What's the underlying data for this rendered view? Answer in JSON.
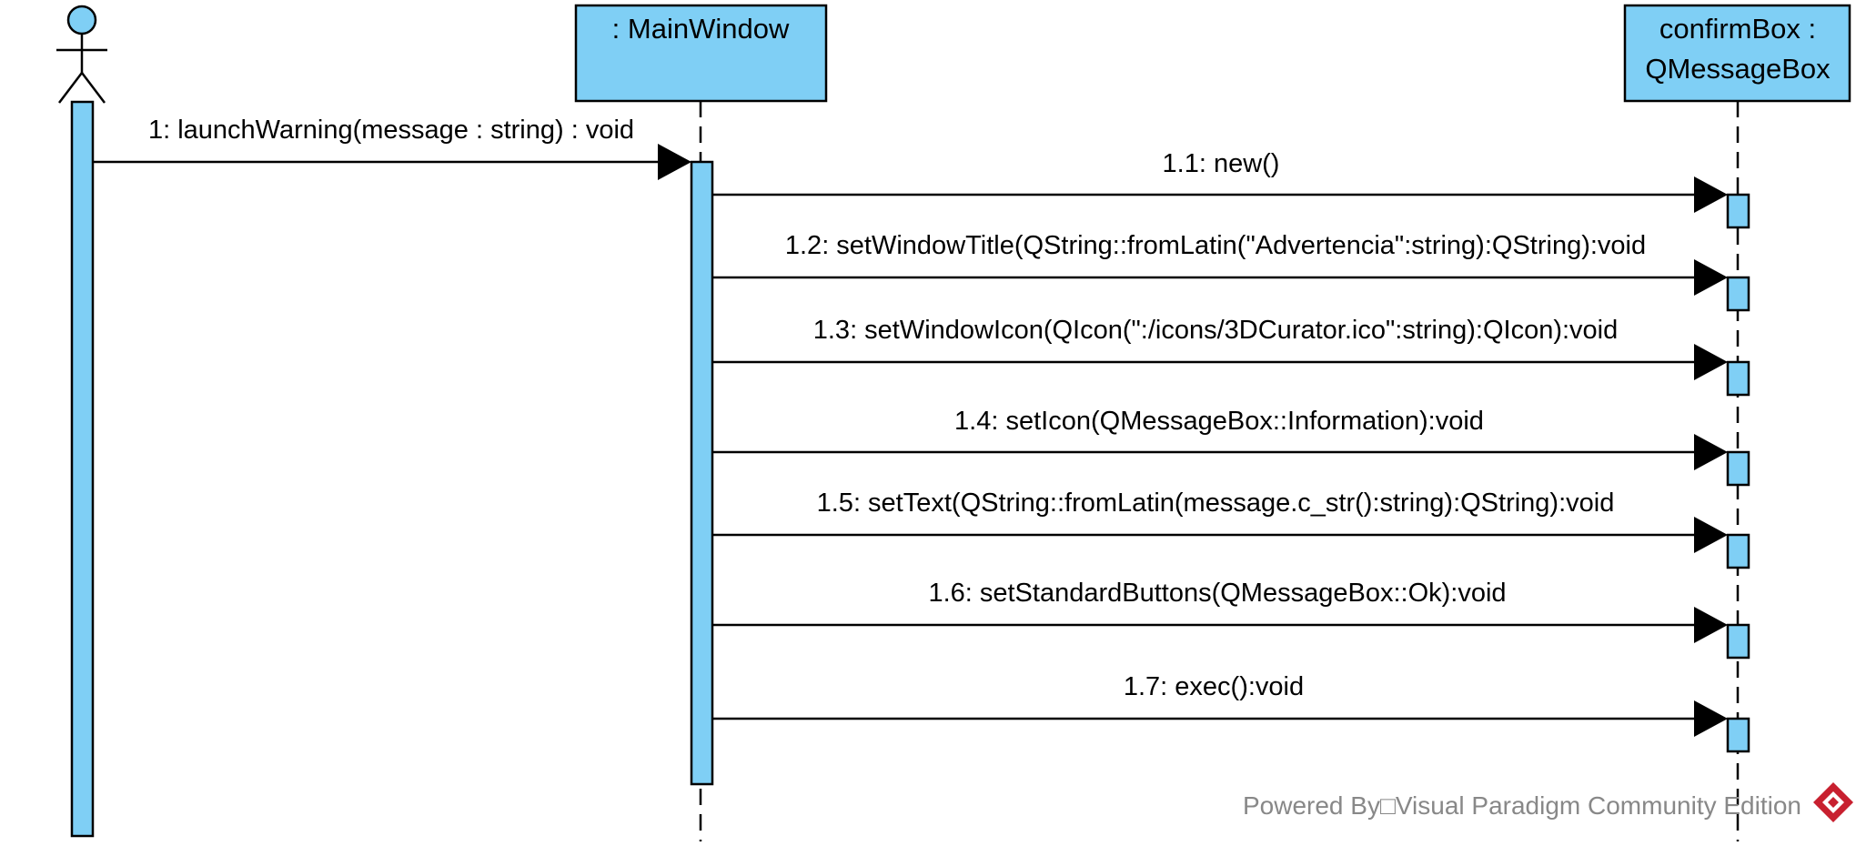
{
  "colors": {
    "fill": "#7fcff5",
    "stroke": "#000000",
    "watermark_text": "#888888",
    "logo_red": "#c8202f"
  },
  "actor": {
    "icon": "stick-figure-actor-icon"
  },
  "lifelines": [
    {
      "id": "mainwindow",
      "title_lines": [
        ": MainWindow"
      ]
    },
    {
      "id": "confirmbox",
      "title_lines": [
        "confirmBox :",
        "QMessageBox"
      ]
    }
  ],
  "messages": [
    {
      "label": "1: launchWarning(message : string) : void"
    },
    {
      "label": "1.1: new()"
    },
    {
      "label": "1.2: setWindowTitle(QString::fromLatin(\"Advertencia\":string):QString):void"
    },
    {
      "label": "1.3: setWindowIcon(QIcon(\":/icons/3DCurator.ico\":string):QIcon):void"
    },
    {
      "label": "1.4: setIcon(QMessageBox::Information):void"
    },
    {
      "label": "1.5: setText(QString::fromLatin(message.c_str():string):QString):void"
    },
    {
      "label": "1.6: setStandardButtons(QMessageBox::Ok):void"
    },
    {
      "label": "1.7: exec():void"
    }
  ],
  "watermark": {
    "text": "Powered By□Visual Paradigm Community Edition",
    "logo_icon": "visual-paradigm-logo-icon"
  }
}
